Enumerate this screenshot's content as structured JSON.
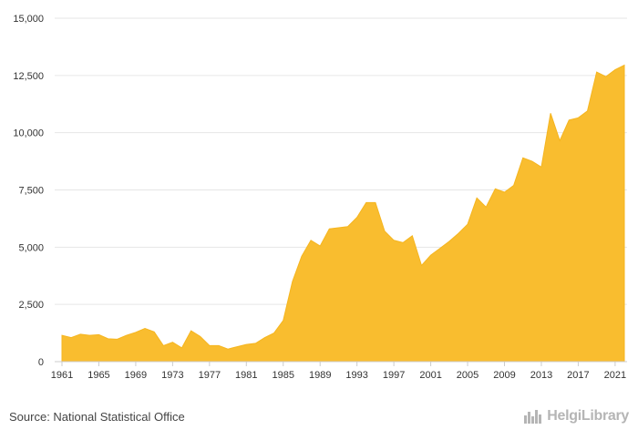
{
  "chart_data": {
    "type": "area",
    "x": [
      1961,
      1962,
      1963,
      1964,
      1965,
      1966,
      1967,
      1968,
      1969,
      1970,
      1971,
      1972,
      1973,
      1974,
      1975,
      1976,
      1977,
      1978,
      1979,
      1980,
      1981,
      1982,
      1983,
      1984,
      1985,
      1986,
      1987,
      1988,
      1989,
      1990,
      1991,
      1992,
      1993,
      1994,
      1995,
      1996,
      1997,
      1998,
      1999,
      2000,
      2001,
      2002,
      2003,
      2004,
      2005,
      2006,
      2007,
      2008,
      2009,
      2010,
      2011,
      2012,
      2013,
      2014,
      2015,
      2016,
      2017,
      2018,
      2019,
      2020,
      2021,
      2022
    ],
    "values": [
      1150,
      1050,
      1200,
      1150,
      1180,
      1000,
      980,
      1150,
      1280,
      1450,
      1300,
      700,
      850,
      600,
      1350,
      1100,
      700,
      700,
      550,
      650,
      750,
      800,
      1050,
      1250,
      1800,
      3500,
      4600,
      5300,
      5050,
      5800,
      5850,
      5900,
      6300,
      6950,
      6950,
      5700,
      5300,
      5200,
      5500,
      4200,
      4650,
      4950,
      5250,
      5600,
      6000,
      7150,
      6750,
      7550,
      7400,
      7700,
      8900,
      8750,
      8500,
      10850,
      9650,
      10550,
      10650,
      10950,
      12650,
      12450,
      12750,
      12950
    ],
    "xticks": [
      "1961",
      "1965",
      "1969",
      "1973",
      "1977",
      "1981",
      "1985",
      "1989",
      "1993",
      "1997",
      "2001",
      "2005",
      "2009",
      "2013",
      "2017",
      "2021"
    ],
    "yticks": [
      "0",
      "2,500",
      "5,000",
      "7,500",
      "10,000",
      "12,500",
      "15,000"
    ],
    "ylim": [
      0,
      15000
    ],
    "xlim": [
      1961,
      2022
    ],
    "grid": "horizontal",
    "colors": {
      "fill": "#f9bd2f",
      "line": "#f5b51f",
      "grid": "#e6e6e6"
    }
  },
  "footer": {
    "source": "Source: National Statistical Office",
    "brand": "HelgiLibrary",
    "brand_icon": "city-skyline-icon"
  }
}
